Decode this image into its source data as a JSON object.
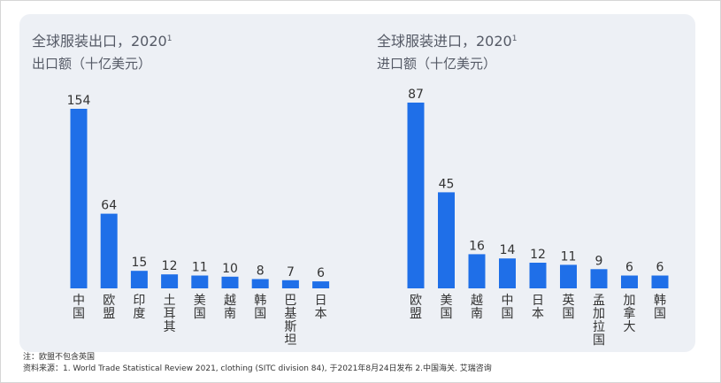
{
  "chart_data": [
    {
      "type": "bar",
      "title": "全球服装出口，2020",
      "title_sup": "1",
      "subtitle": "出口额（十亿美元）",
      "categories": [
        "中国",
        "欧盟",
        "印度",
        "土耳其",
        "美国",
        "越南",
        "韩国",
        "巴基斯坦",
        "日本"
      ],
      "values": [
        154,
        64,
        15,
        12,
        11,
        10,
        8,
        7,
        6
      ],
      "color": "#1f6fe8",
      "ylim": [
        0,
        154
      ]
    },
    {
      "type": "bar",
      "title": "全球服装进口，2020",
      "title_sup": "1",
      "subtitle": "进口额（十亿美元）",
      "categories": [
        "欧盟",
        "美国",
        "越南",
        "中国",
        "日本",
        "英国",
        "孟加拉国",
        "加拿大",
        "韩国"
      ],
      "values": [
        87,
        45,
        16,
        14,
        12,
        11,
        9,
        6,
        6
      ],
      "color": "#1f6fe8",
      "ylim": [
        0,
        87
      ]
    }
  ],
  "footnotes": {
    "note": "注：欧盟不包含英国",
    "source": "资料来源：1. World Trade Statistical Review 2021, clothing (SITC division 84), 于2021年8月24日发布 2.中国海关. 艾瑞咨询"
  }
}
